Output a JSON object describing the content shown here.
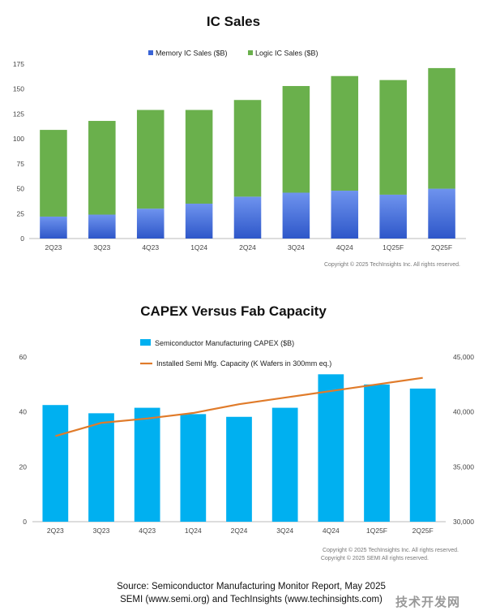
{
  "chart_data": [
    {
      "type": "bar",
      "stacked": true,
      "title": "IC Sales",
      "categories": [
        "2Q23",
        "3Q23",
        "4Q23",
        "1Q24",
        "2Q24",
        "3Q24",
        "4Q24",
        "1Q25F",
        "2Q25F"
      ],
      "series": [
        {
          "name": "Memory IC Sales ($B)",
          "color": "#3a64d6",
          "values": [
            22,
            24,
            30,
            35,
            42,
            46,
            48,
            44,
            50
          ]
        },
        {
          "name": "Logic IC Sales ($B)",
          "color": "#6ab04c",
          "values": [
            87,
            94,
            99,
            94,
            97,
            107,
            115,
            115,
            121
          ]
        }
      ],
      "yticks": [
        "0",
        "25",
        "50",
        "75",
        "100",
        "125",
        "150",
        "175"
      ],
      "ylim": [
        0,
        175
      ],
      "legend": "top-center",
      "copyright": "Copyright © 2025 TechInsights Inc.  All rights reserved."
    },
    {
      "type": "bar+line",
      "title": "CAPEX Versus Fab Capacity",
      "categories": [
        "2Q23",
        "3Q23",
        "4Q23",
        "1Q24",
        "2Q24",
        "3Q24",
        "4Q24",
        "1Q25F",
        "2Q25F"
      ],
      "series": [
        {
          "name": "Semiconductor Manufacturing CAPEX ($B)",
          "type": "bar",
          "axis": "left",
          "color": "#00b0f0",
          "values": [
            42.5,
            39.5,
            41.5,
            39.2,
            38.2,
            41.5,
            53.7,
            50,
            48.5
          ]
        },
        {
          "name": "Installed Semi Mfg. Capacity (K Wafers in 300mm eq.)",
          "type": "line",
          "axis": "right",
          "color": "#e07b2a",
          "values": [
            37800,
            39000,
            39400,
            39900,
            40700,
            41300,
            41900,
            42500,
            43100
          ]
        }
      ],
      "yticks_left": [
        "0",
        "20",
        "40",
        "60"
      ],
      "ylim_left": [
        0,
        60
      ],
      "yticks_right": [
        "30,000",
        "35,000",
        "40,000",
        "45,000"
      ],
      "ylim_right": [
        30000,
        45000
      ],
      "legend": "top-center",
      "copyright_lines": [
        "Copyright © 2025 TechInsights Inc.  All rights reserved.",
        "Copyright © 2025 SEMI   All rights reserved."
      ]
    }
  ],
  "source": {
    "line1": "Source: Semiconductor Manufacturing Monitor Report, May 2025",
    "line2": "SEMI (www.semi.org) and TechInsights (www.techinsights.com)"
  },
  "watermark": "技术开发网"
}
